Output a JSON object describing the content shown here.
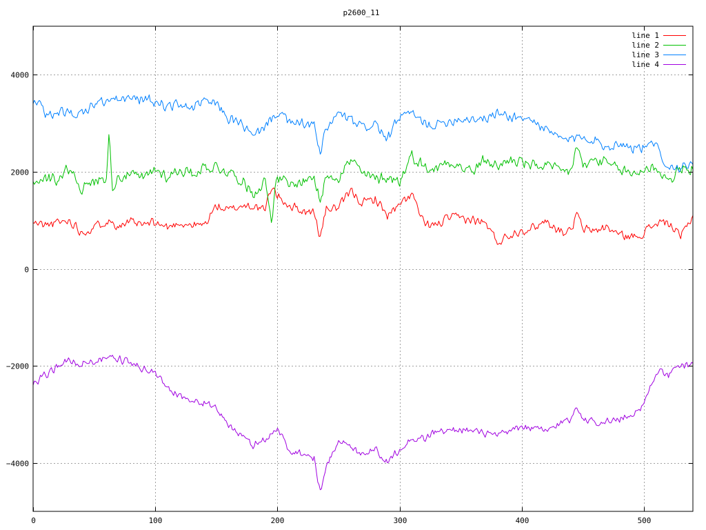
{
  "chart_data": {
    "type": "line",
    "title": "p2600_11",
    "xlabel": "",
    "ylabel": "",
    "xlim": [
      0,
      540
    ],
    "ylim": [
      -5000,
      5000
    ],
    "x_ticks": [
      0,
      100,
      200,
      300,
      400,
      500
    ],
    "y_ticks": [
      -4000,
      -2000,
      0,
      2000,
      4000
    ],
    "grid": true,
    "legend_position": "top-right",
    "noise_seed": 11,
    "series": [
      {
        "name": "line 1",
        "color": "#ff0000",
        "noise_amp": 120,
        "x": [
          0,
          10,
          20,
          30,
          40,
          50,
          60,
          70,
          80,
          90,
          100,
          110,
          120,
          130,
          140,
          150,
          160,
          170,
          180,
          190,
          195,
          200,
          210,
          220,
          230,
          235,
          240,
          250,
          260,
          270,
          280,
          290,
          300,
          310,
          320,
          330,
          340,
          350,
          360,
          370,
          380,
          390,
          400,
          410,
          420,
          430,
          440,
          445,
          450,
          460,
          470,
          480,
          490,
          500,
          510,
          520,
          530,
          540
        ],
        "y": [
          950,
          900,
          950,
          1000,
          750,
          850,
          1000,
          900,
          950,
          900,
          950,
          850,
          950,
          900,
          900,
          1300,
          1200,
          1300,
          1300,
          1200,
          1700,
          1500,
          1300,
          1200,
          1150,
          650,
          1250,
          1250,
          1600,
          1350,
          1450,
          1100,
          1300,
          1550,
          900,
          900,
          1050,
          1050,
          1000,
          950,
          550,
          700,
          800,
          850,
          1000,
          800,
          750,
          1150,
          800,
          800,
          850,
          700,
          650,
          750,
          950,
          950,
          650,
          1100
        ]
      },
      {
        "name": "line 2",
        "color": "#00c000",
        "noise_amp": 150,
        "x": [
          0,
          10,
          20,
          30,
          40,
          50,
          55,
          60,
          62,
          65,
          70,
          80,
          90,
          100,
          110,
          120,
          130,
          140,
          150,
          160,
          170,
          180,
          190,
          195,
          200,
          210,
          220,
          230,
          235,
          240,
          250,
          260,
          270,
          280,
          290,
          300,
          310,
          320,
          330,
          340,
          350,
          360,
          370,
          380,
          390,
          400,
          410,
          420,
          430,
          440,
          445,
          450,
          460,
          470,
          480,
          490,
          500,
          510,
          520,
          530,
          540
        ],
        "y": [
          1800,
          1850,
          1850,
          2100,
          1650,
          1800,
          1850,
          1900,
          2750,
          1700,
          1900,
          1950,
          1850,
          2050,
          1900,
          2050,
          1950,
          2100,
          2100,
          2000,
          1850,
          1550,
          1800,
          1050,
          1900,
          1700,
          1800,
          1900,
          1350,
          1950,
          1900,
          2250,
          1950,
          1850,
          1900,
          1800,
          2350,
          2100,
          2050,
          2250,
          2100,
          2000,
          2250,
          2100,
          2250,
          2200,
          2100,
          2150,
          2000,
          2000,
          2550,
          2100,
          2250,
          2150,
          2050,
          1950,
          2050,
          2100,
          1800,
          2050,
          2050
        ]
      },
      {
        "name": "line 3",
        "color": "#0080ff",
        "noise_amp": 130,
        "x": [
          0,
          5,
          10,
          20,
          30,
          40,
          50,
          60,
          70,
          80,
          90,
          100,
          110,
          120,
          130,
          140,
          150,
          160,
          170,
          180,
          190,
          200,
          210,
          220,
          230,
          235,
          240,
          250,
          260,
          270,
          280,
          290,
          300,
          310,
          320,
          330,
          340,
          350,
          360,
          370,
          380,
          390,
          400,
          410,
          420,
          430,
          440,
          450,
          460,
          470,
          480,
          490,
          500,
          510,
          520,
          530,
          540
        ],
        "y": [
          3400,
          3550,
          3100,
          3250,
          3200,
          3200,
          3400,
          3450,
          3500,
          3500,
          3500,
          3450,
          3350,
          3400,
          3300,
          3450,
          3400,
          3100,
          3000,
          2700,
          2950,
          3250,
          3000,
          3000,
          2950,
          2350,
          2900,
          3200,
          3050,
          2900,
          3000,
          2650,
          3150,
          3200,
          3000,
          2950,
          3050,
          3100,
          3100,
          3100,
          3200,
          3150,
          3100,
          3050,
          2850,
          2700,
          2650,
          2750,
          2650,
          2500,
          2600,
          2500,
          2500,
          2550,
          2100,
          2100,
          2150
        ]
      },
      {
        "name": "line 4",
        "color": "#a000e0",
        "noise_amp": 100,
        "x": [
          0,
          10,
          20,
          30,
          40,
          50,
          60,
          70,
          80,
          90,
          100,
          110,
          120,
          130,
          140,
          150,
          160,
          170,
          180,
          190,
          200,
          210,
          220,
          230,
          235,
          240,
          250,
          260,
          270,
          280,
          290,
          300,
          310,
          320,
          330,
          340,
          350,
          360,
          370,
          380,
          390,
          400,
          410,
          420,
          430,
          440,
          445,
          450,
          460,
          470,
          480,
          490,
          500,
          510,
          520,
          530,
          540
        ],
        "y": [
          -2400,
          -2200,
          -2000,
          -1900,
          -1950,
          -1900,
          -1850,
          -1850,
          -1950,
          -2050,
          -2150,
          -2450,
          -2600,
          -2750,
          -2750,
          -2900,
          -3200,
          -3450,
          -3650,
          -3500,
          -3300,
          -3750,
          -3800,
          -3900,
          -4600,
          -4100,
          -3500,
          -3700,
          -3800,
          -3700,
          -4000,
          -3700,
          -3500,
          -3500,
          -3350,
          -3350,
          -3300,
          -3350,
          -3400,
          -3450,
          -3350,
          -3250,
          -3300,
          -3350,
          -3200,
          -3100,
          -2800,
          -3100,
          -3150,
          -3150,
          -3100,
          -3000,
          -2800,
          -2100,
          -2200,
          -2000,
          -1950
        ]
      }
    ]
  }
}
